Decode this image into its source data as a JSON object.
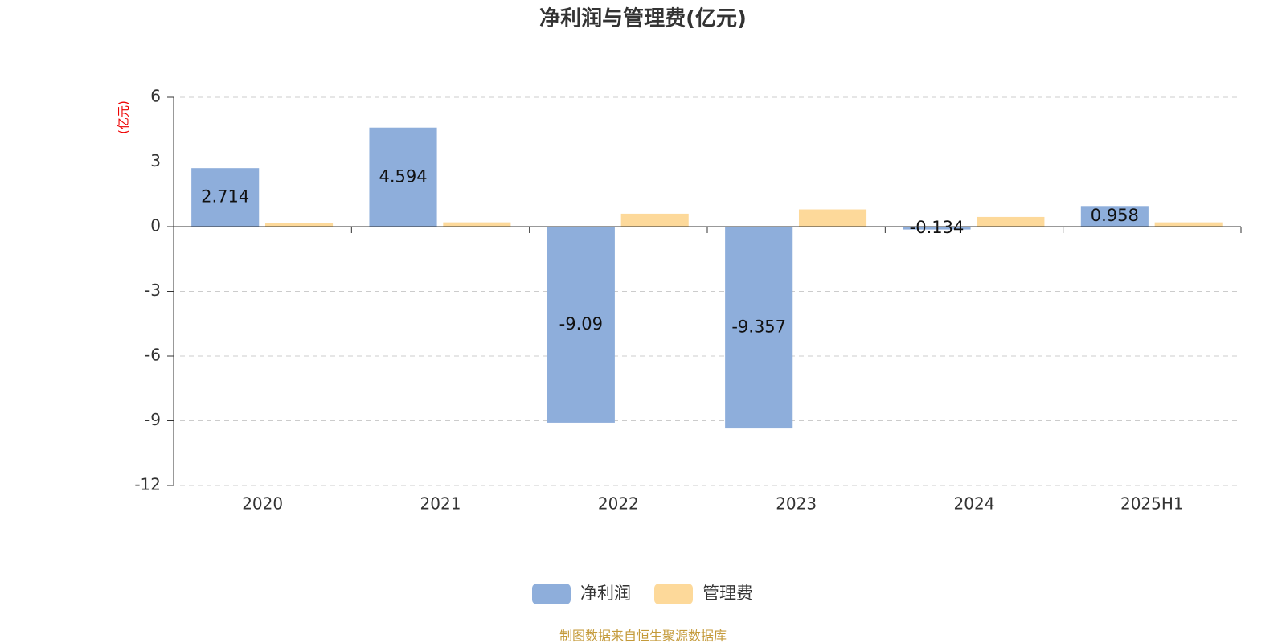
{
  "chart_data": {
    "type": "bar",
    "title": "净利润与管理费(亿元)",
    "y_label": "(亿元)",
    "categories": [
      "2020",
      "2021",
      "2022",
      "2023",
      "2024",
      "2025H1"
    ],
    "series": [
      {
        "name": "净利润",
        "color": "#8eaedb",
        "values": [
          2.714,
          4.594,
          -9.09,
          -9.357,
          -0.134,
          0.958
        ]
      },
      {
        "name": "管理费",
        "color": "#fdd99a",
        "values": [
          0.15,
          0.2,
          0.6,
          0.8,
          0.45,
          0.2
        ]
      }
    ],
    "ylim": [
      -12,
      6
    ],
    "yticks": [
      -12,
      -9,
      -6,
      -3,
      0,
      3,
      6
    ],
    "grid": true,
    "legend": "bottom",
    "source": "制图数据来自恒生聚源数据库"
  }
}
